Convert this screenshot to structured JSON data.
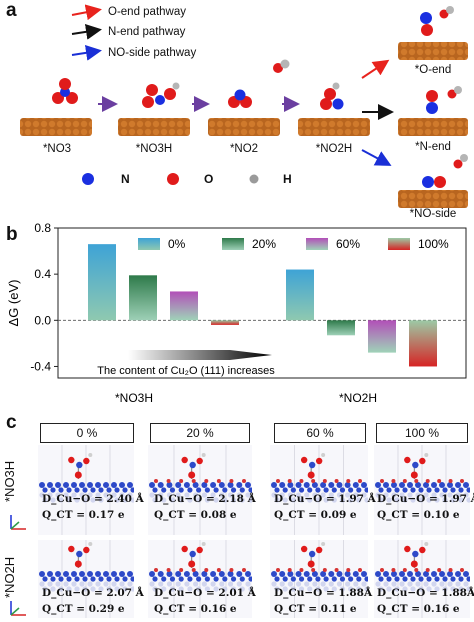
{
  "panel_a": {
    "letter": "a",
    "legend": [
      {
        "label": "O-end pathway",
        "color": "#e8231d"
      },
      {
        "label": "N-end pathway",
        "color": "#111111"
      },
      {
        "label": "NO-side pathway",
        "color": "#1a2fd6"
      }
    ],
    "intermediates": [
      "*NO3",
      "*NO3H",
      "*NO2",
      "*NO2H"
    ],
    "products": [
      "*O-end",
      "*N-end",
      "*NO-side"
    ],
    "atoms": [
      {
        "label": "N",
        "color": "#1a2fe0"
      },
      {
        "label": "O",
        "color": "#e01b1b"
      },
      {
        "label": "H",
        "color": "#9a9a9a"
      }
    ]
  },
  "panel_b": {
    "letter": "b",
    "chart_data": {
      "type": "bar",
      "categories": [
        "*NO3H",
        "*NO2H"
      ],
      "ylabel": "ΔG (eV)",
      "ylim": [
        -0.5,
        0.8
      ],
      "yticks": [
        -0.4,
        0.0,
        0.4,
        0.8
      ],
      "ytick_labels": [
        "-0.4",
        "0.0",
        "0.4",
        "0.8"
      ],
      "series": [
        {
          "name": "0%",
          "color": "#3ea3d6",
          "values": [
            0.66,
            0.44
          ]
        },
        {
          "name": "20%",
          "color": "#2e7a4a",
          "values": [
            0.39,
            -0.13
          ]
        },
        {
          "name": "60%",
          "color": "#b24fb8",
          "values": [
            0.25,
            -0.28
          ]
        },
        {
          "name": "100%",
          "color": "#d62424",
          "values": [
            -0.04,
            -0.4
          ]
        }
      ],
      "annotation": "The content of Cu₂O (111) increases",
      "legend_position": "top"
    }
  },
  "panel_c": {
    "letter": "c",
    "columns": [
      "0 %",
      "20 %",
      "60 %",
      "100 %"
    ],
    "rows": [
      {
        "label": "*NO3H",
        "cells": [
          {
            "d": "D_Cu−O = 2.40 Å",
            "q": "Q_CT = 0.17 e"
          },
          {
            "d": "D_Cu−O = 2.18 Å",
            "q": "Q_CT = 0.08 e"
          },
          {
            "d": "D_Cu−O = 1.97 Å",
            "q": "Q_CT = 0.09 e"
          },
          {
            "d": "D_Cu−O = 1.97 Å",
            "q": "Q_CT = 0.10 e"
          }
        ]
      },
      {
        "label": "*NO2H",
        "cells": [
          {
            "d": "D_Cu−O = 2.07 Å",
            "q": "Q_CT = 0.29 e"
          },
          {
            "d": "D_Cu−O = 2.01 Å",
            "q": "Q_CT = 0.16 e"
          },
          {
            "d": "D_Cu−O = 1.88Å",
            "q": "Q_CT = 0.11 e"
          },
          {
            "d": "D_Cu−O = 1.88Å",
            "q": "Q_CT = 0.16 e"
          }
        ]
      }
    ]
  }
}
